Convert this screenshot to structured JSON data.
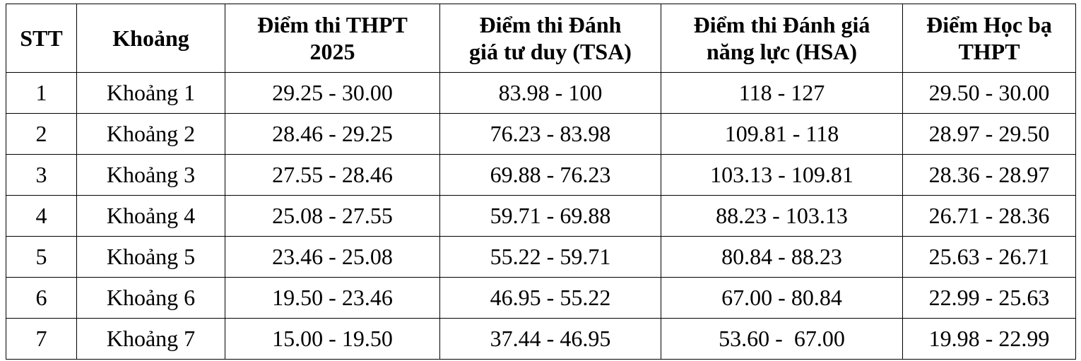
{
  "table": {
    "header": [
      [
        "STT"
      ],
      [
        "Khoảng"
      ],
      [
        "Điểm thi THPT",
        "2025"
      ],
      [
        "Điểm thi Đánh",
        "giá tư duy (TSA)"
      ],
      [
        "Điểm thi Đánh giá",
        "năng lực (HSA)"
      ],
      [
        "Điểm Học bạ",
        "THPT"
      ]
    ],
    "rows": [
      [
        "1",
        "Khoảng 1",
        "29.25 - 30.00",
        "83.98 - 100",
        "118 - 127",
        "29.50 - 30.00"
      ],
      [
        "2",
        "Khoảng 2",
        "28.46 - 29.25",
        "76.23 - 83.98",
        "109.81 - 118",
        "28.97 - 29.50"
      ],
      [
        "3",
        "Khoảng 3",
        "27.55 - 28.46",
        "69.88 - 76.23",
        "103.13 - 109.81",
        "28.36 - 28.97"
      ],
      [
        "4",
        "Khoảng 4",
        "25.08 - 27.55",
        "59.71 - 69.88",
        "88.23 - 103.13",
        "26.71 - 28.36"
      ],
      [
        "5",
        "Khoảng 5",
        "23.46 - 25.08",
        "55.22 - 59.71",
        "80.84 - 88.23",
        "25.63 - 26.71"
      ],
      [
        "6",
        "Khoảng 6",
        "19.50 - 23.46",
        "46.95 - 55.22",
        "67.00 - 80.84",
        "22.99 - 25.63"
      ],
      [
        "7",
        "Khoảng 7",
        "15.00 - 19.50",
        "37.44 - 46.95",
        "53.60 -  67.00",
        "19.98 - 22.99"
      ]
    ]
  }
}
